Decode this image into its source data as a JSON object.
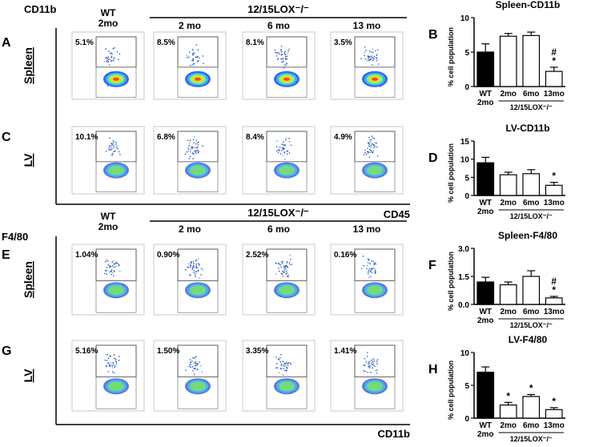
{
  "flow": [
    {
      "y_axis": "CD11b",
      "x_axis": "CD45",
      "wt": "WT\n2mo",
      "group": "12/15LOX⁻/⁻",
      "columns": [
        "2 mo",
        "6 mo",
        "13 mo"
      ],
      "rows": [
        {
          "panel": "A",
          "tissue": "Spleen",
          "percents": [
            "5.1%",
            "8.5%",
            "8.1%",
            "3.5%"
          ]
        },
        {
          "panel": "C",
          "tissue": "LV",
          "percents": [
            "10.1%",
            "6.8%",
            "8.4%",
            "4.9%"
          ]
        }
      ]
    },
    {
      "y_axis": "F4/80",
      "x_axis": "CD11b",
      "wt": "WT\n2mo",
      "group": "12/15LOX⁻/⁻",
      "columns": [
        "2 mo",
        "6 mo",
        "13 mo"
      ],
      "rows": [
        {
          "panel": "E",
          "tissue": "Spleen",
          "percents": [
            "1.04%",
            "0.90%",
            "2.52%",
            "0.16%"
          ]
        },
        {
          "panel": "G",
          "tissue": "LV",
          "percents": [
            "5.16%",
            "1.50%",
            "3.35%",
            "1.41%"
          ]
        }
      ]
    }
  ],
  "chart_data": [
    {
      "type": "bar",
      "panel": "B",
      "title": "Spleen-CD11b",
      "y_label": "% cell population",
      "categories": [
        "WT\n2mo",
        "2mo",
        "6mo",
        "13mo"
      ],
      "group_label": "12/15LOX⁻/⁻",
      "values": [
        5,
        7.3,
        7.4,
        2.2
      ],
      "errors": [
        1.2,
        0.4,
        0.5,
        0.6
      ],
      "colors": [
        "#000000",
        "#ffffff",
        "#ffffff",
        "#ffffff"
      ],
      "annotations": [
        [],
        [],
        [],
        [
          "#",
          "*"
        ]
      ],
      "ylim": [
        0,
        10
      ],
      "yticks": [
        0,
        5,
        10
      ]
    },
    {
      "type": "bar",
      "panel": "D",
      "title": "LV-CD11b",
      "y_label": "% cell population",
      "categories": [
        "WT\n2mo",
        "2mo",
        "6mo",
        "13mo"
      ],
      "group_label": "12/15LOX⁻/⁻",
      "values": [
        9,
        5.7,
        6,
        2.8
      ],
      "errors": [
        1.5,
        0.7,
        1.1,
        0.8
      ],
      "colors": [
        "#000000",
        "#ffffff",
        "#ffffff",
        "#ffffff"
      ],
      "annotations": [
        [],
        [],
        [],
        [
          "*"
        ]
      ],
      "ylim": [
        0,
        15
      ],
      "yticks": [
        0,
        5,
        10,
        15
      ]
    },
    {
      "type": "bar",
      "panel": "F",
      "title": "Spleen-F4/80",
      "y_label": "% cell population",
      "categories": [
        "WT\n2mo",
        "2mo",
        "6mo",
        "13mo"
      ],
      "group_label": "12/15LOX⁻/⁻",
      "values": [
        1.2,
        1.05,
        1.5,
        0.35
      ],
      "errors": [
        0.25,
        0.15,
        0.3,
        0.08
      ],
      "colors": [
        "#000000",
        "#ffffff",
        "#ffffff",
        "#ffffff"
      ],
      "annotations": [
        [],
        [],
        [],
        [
          "#",
          "*"
        ]
      ],
      "ylim": [
        0,
        3
      ],
      "yticks": [
        {
          "value": 0,
          "label": "0.0"
        },
        1.5,
        {
          "value": 3,
          "label": "3.0"
        }
      ]
    },
    {
      "type": "bar",
      "panel": "H",
      "title": "LV-F4/80",
      "y_label": "% cell population",
      "categories": [
        "WT\n2mo",
        "2mo",
        "6mo",
        "13mo"
      ],
      "group_label": "12/15LOX⁻/⁻",
      "values": [
        7,
        2,
        3.3,
        1.3
      ],
      "errors": [
        0.8,
        0.4,
        0.3,
        0.3
      ],
      "colors": [
        "#000000",
        "#ffffff",
        "#ffffff",
        "#ffffff"
      ],
      "annotations": [
        [],
        [
          "*"
        ],
        [
          "*"
        ],
        [
          "*"
        ]
      ],
      "ylim": [
        0,
        10
      ],
      "yticks": [
        0,
        5,
        10
      ]
    }
  ]
}
